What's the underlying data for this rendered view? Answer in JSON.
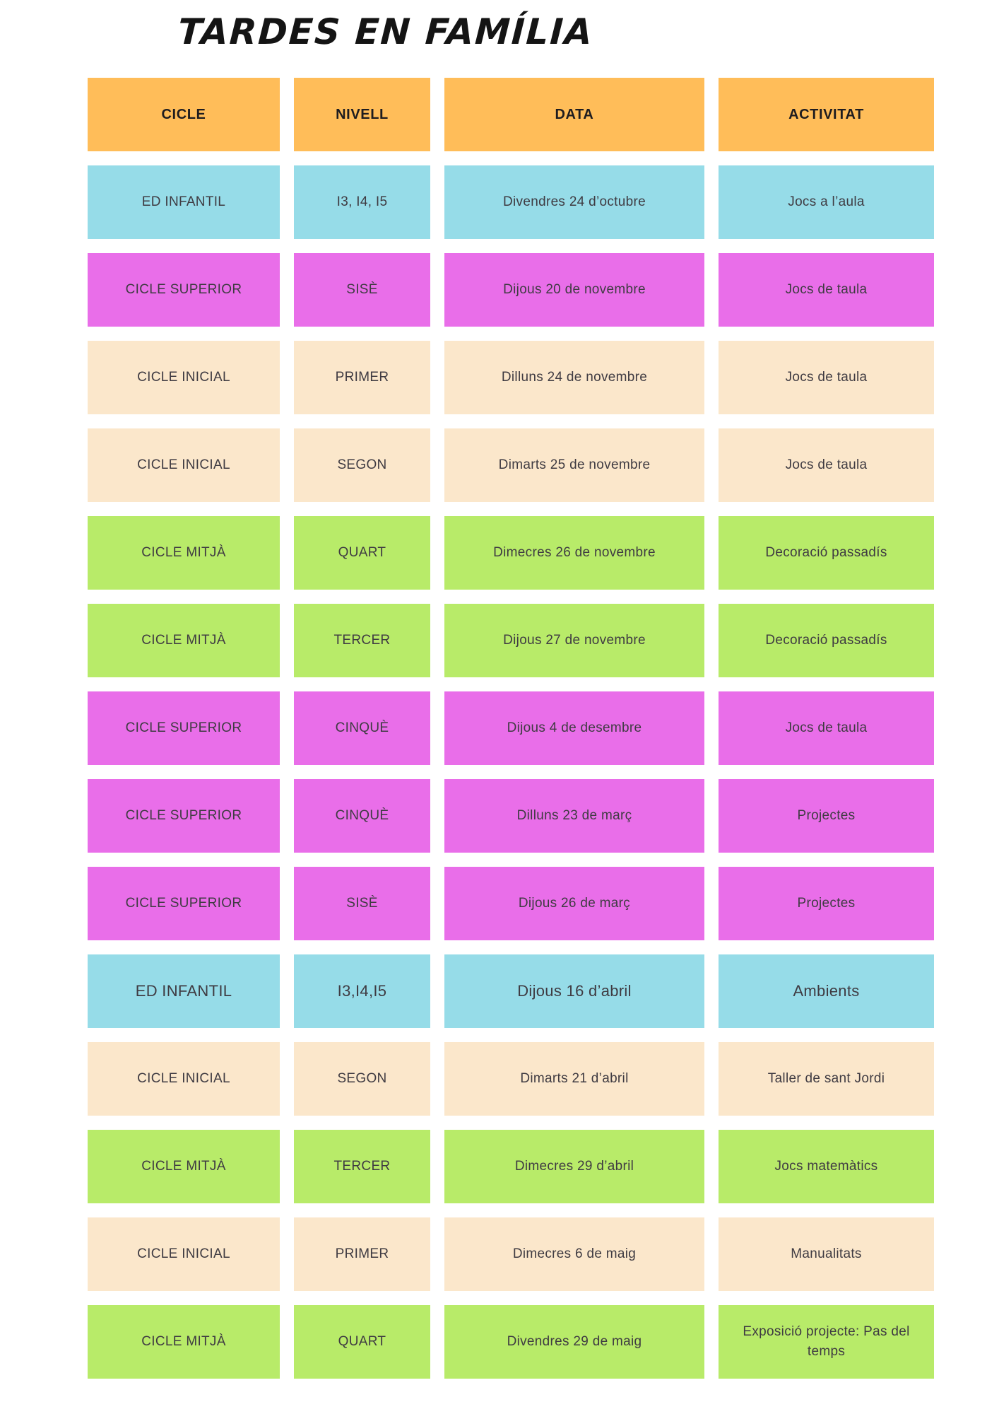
{
  "title": "TARDES EN FAMÍLIA",
  "palette": {
    "header": "#FFBD59",
    "blue": "#96DCE8",
    "magenta": "#E96EE9",
    "cream": "#FBE7CB",
    "green": "#B8EB69"
  },
  "table": {
    "headers": [
      "CICLE",
      "NIVELL",
      "DATA",
      "ACTIVITAT"
    ],
    "rows": [
      {
        "cicle": "ED INFANTIL",
        "nivell": "I3, I4, I5",
        "data": "Divendres 24 d’octubre",
        "activitat": "Jocs a l’aula",
        "color": "blue",
        "large": false
      },
      {
        "cicle": "CICLE SUPERIOR",
        "nivell": "SISÈ",
        "data": "Dijous 20 de novembre",
        "activitat": "Jocs de taula",
        "color": "magenta",
        "large": false
      },
      {
        "cicle": "CICLE INICIAL",
        "nivell": "PRIMER",
        "data": "Dilluns 24 de novembre",
        "activitat": "Jocs de taula",
        "color": "cream",
        "large": false
      },
      {
        "cicle": "CICLE INICIAL",
        "nivell": "SEGON",
        "data": "Dimarts 25 de novembre",
        "activitat": "Jocs de taula",
        "color": "cream",
        "large": false
      },
      {
        "cicle": "CICLE MITJÀ",
        "nivell": "QUART",
        "data": "Dimecres 26 de novembre",
        "activitat": "Decoració passadís",
        "color": "green",
        "large": false
      },
      {
        "cicle": "CICLE MITJÀ",
        "nivell": "TERCER",
        "data": "Dijous 27 de novembre",
        "activitat": "Decoració passadís",
        "color": "green",
        "large": false
      },
      {
        "cicle": "CICLE SUPERIOR",
        "nivell": "CINQUÈ",
        "data": "Dijous 4 de desembre",
        "activitat": "Jocs de taula",
        "color": "magenta",
        "large": false
      },
      {
        "cicle": "CICLE SUPERIOR",
        "nivell": "CINQUÈ",
        "data": "Dilluns 23 de març",
        "activitat": "Projectes",
        "color": "magenta",
        "large": false
      },
      {
        "cicle": "CICLE SUPERIOR",
        "nivell": "SISÈ",
        "data": "Dijous 26 de març",
        "activitat": "Projectes",
        "color": "magenta",
        "large": false
      },
      {
        "cicle": "ED INFANTIL",
        "nivell": "I3,I4,I5",
        "data": "Dijous 16 d’abril",
        "activitat": "Ambients",
        "color": "blue",
        "large": true
      },
      {
        "cicle": "CICLE INICIAL",
        "nivell": "SEGON",
        "data": "Dimarts 21 d’abril",
        "activitat": "Taller de sant Jordi",
        "color": "cream",
        "large": false
      },
      {
        "cicle": "CICLE MITJÀ",
        "nivell": "TERCER",
        "data": "Dimecres 29 d’abril",
        "activitat": "Jocs matemàtics",
        "color": "green",
        "large": false
      },
      {
        "cicle": "CICLE INICIAL",
        "nivell": "PRIMER",
        "data": "Dimecres 6 de maig",
        "activitat": "Manualitats",
        "color": "cream",
        "large": false
      },
      {
        "cicle": "CICLE MITJÀ",
        "nivell": "QUART",
        "data": "Divendres 29 de maig",
        "activitat": "Exposició projecte: Pas del temps",
        "color": "green",
        "large": false
      }
    ]
  }
}
